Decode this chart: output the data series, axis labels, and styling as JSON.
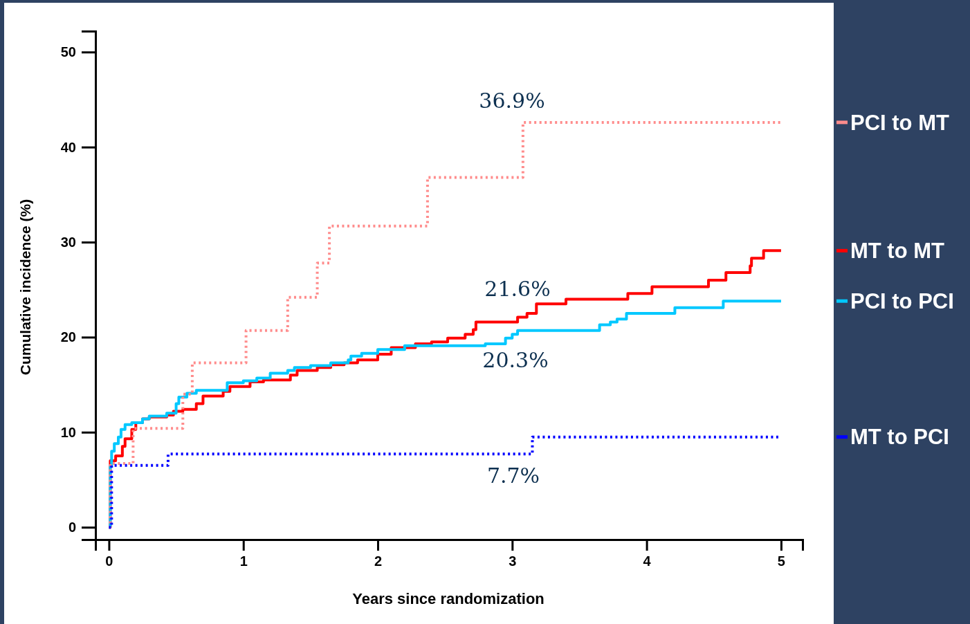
{
  "chart_data": {
    "type": "step",
    "xlabel": "Years since randomization",
    "ylabel": "Cumulative incidence (%)",
    "xlim": [
      -0.1,
      5.16
    ],
    "ylim": [
      -1.3,
      52.2
    ],
    "xticks": [
      0,
      1,
      2,
      3,
      4,
      5
    ],
    "yticks": [
      0,
      10,
      20,
      30,
      40,
      50
    ],
    "grid": false,
    "legend": "right",
    "marker": "none",
    "series": [
      {
        "name": "PCI to MT",
        "color": "#ff8c8c",
        "line_style": "dotted",
        "x": [
          0,
          0.01,
          0.18,
          0.55,
          0.62,
          1.02,
          1.33,
          1.55,
          1.64,
          2.37,
          3.08,
          5
        ],
        "values": [
          0,
          6.7,
          10.4,
          14,
          17.3,
          20.7,
          24.2,
          27.8,
          31.7,
          36.8,
          42.6,
          42.6
        ]
      },
      {
        "name": "MT to MT",
        "color": "#ff0000",
        "line_style": "solid",
        "x": [
          0,
          0.01,
          0.05,
          0.1,
          0.12,
          0.17,
          0.2,
          0.25,
          0.3,
          0.43,
          0.48,
          0.55,
          0.65,
          0.7,
          0.85,
          0.9,
          1.05,
          1.15,
          1.35,
          1.4,
          1.55,
          1.65,
          1.75,
          1.85,
          2.0,
          2.1,
          2.28,
          2.4,
          2.52,
          2.65,
          2.71,
          2.73,
          3.04,
          3.11,
          3.18,
          3.4,
          3.86,
          4.04,
          4.46,
          4.59,
          4.77,
          4.78,
          4.87,
          5
        ],
        "values": [
          0,
          7,
          7.5,
          8.5,
          9.3,
          10.3,
          11,
          11.4,
          11.6,
          11.8,
          12.2,
          12.4,
          13,
          13.8,
          14.3,
          14.8,
          15.3,
          15.5,
          16,
          16.5,
          16.8,
          17.1,
          17.3,
          17.6,
          18.2,
          18.9,
          19.3,
          19.5,
          19.9,
          20.3,
          20.8,
          21.6,
          22.1,
          22.5,
          23.5,
          24,
          24.6,
          25.3,
          26,
          26.8,
          27.5,
          28.3,
          29.1,
          29.1
        ]
      },
      {
        "name": "PCI to PCI",
        "color": "#00c8ff",
        "line_style": "solid",
        "x": [
          0,
          0.01,
          0.02,
          0.04,
          0.07,
          0.09,
          0.12,
          0.17,
          0.25,
          0.3,
          0.43,
          0.5,
          0.52,
          0.58,
          0.65,
          0.88,
          1.0,
          1.1,
          1.2,
          1.33,
          1.38,
          1.5,
          1.65,
          1.78,
          1.8,
          1.88,
          2.0,
          2.2,
          2.8,
          2.95,
          3.0,
          3.04,
          3.65,
          3.73,
          3.78,
          3.85,
          4.21,
          4.57,
          5
        ],
        "values": [
          0,
          6.5,
          8,
          8.8,
          9.5,
          10.3,
          10.8,
          11,
          11.4,
          11.7,
          12,
          13,
          13.7,
          14.1,
          14.4,
          15.2,
          15.4,
          15.7,
          16.2,
          16.5,
          16.8,
          17,
          17.3,
          17.6,
          18,
          18.3,
          18.7,
          19.1,
          19.3,
          19.9,
          20.3,
          20.7,
          21.3,
          21.6,
          21.9,
          22.5,
          23.1,
          23.8,
          23.8
        ]
      },
      {
        "name": "MT to PCI",
        "color": "#0000ff",
        "line_style": "dotted",
        "x": [
          0,
          0.02,
          0.44,
          3.15,
          5
        ],
        "values": [
          0,
          6.5,
          7.7,
          9.5,
          9.5
        ]
      }
    ],
    "annotations": [
      "36.9%",
      "21.6%",
      "20.3%",
      "7.7%"
    ]
  }
}
